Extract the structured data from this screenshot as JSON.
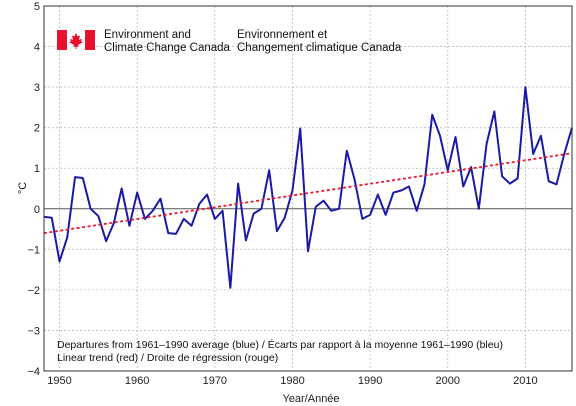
{
  "logo": {
    "en_line1": "Environment and",
    "en_line2": "Climate Change Canada",
    "fr_line1": "Environnement et",
    "fr_line2": "Changement climatique Canada",
    "flag_color": "#e8112d"
  },
  "chart_data": {
    "type": "line",
    "ylabel": "°C",
    "xlabel": "Year/Année",
    "xlim": [
      1948,
      2016
    ],
    "ylim": [
      -4,
      5
    ],
    "xticks": [
      1950,
      1960,
      1970,
      1980,
      1990,
      2000,
      2010
    ],
    "yticks": [
      -4,
      -3,
      -2,
      -1,
      0,
      1,
      2,
      3,
      4,
      5
    ],
    "grid": true,
    "annotations": [
      "Departures from 1961–1990 average (blue) / Écarts par rapport à la moyenne 1961–1990 (bleu)",
      "Linear trend (red) / Droite de régression (rouge)"
    ],
    "series": [
      {
        "color": "#1a1aa8",
        "x": [
          1948,
          1949,
          1950,
          1951,
          1952,
          1953,
          1954,
          1955,
          1956,
          1957,
          1958,
          1959,
          1960,
          1961,
          1962,
          1963,
          1964,
          1965,
          1966,
          1967,
          1968,
          1969,
          1970,
          1971,
          1972,
          1973,
          1974,
          1975,
          1976,
          1977,
          1978,
          1979,
          1980,
          1981,
          1982,
          1983,
          1984,
          1985,
          1986,
          1987,
          1988,
          1989,
          1990,
          1991,
          1992,
          1993,
          1994,
          1995,
          1996,
          1997,
          1998,
          1999,
          2000,
          2001,
          2002,
          2003,
          2004,
          2005,
          2006,
          2007,
          2008,
          2009,
          2010,
          2011,
          2012,
          2013,
          2014,
          2015,
          2016
        ],
        "values": [
          -0.2,
          -0.22,
          -1.3,
          -0.7,
          0.78,
          0.76,
          0.0,
          -0.18,
          -0.8,
          -0.35,
          0.5,
          -0.42,
          0.4,
          -0.25,
          -0.05,
          0.25,
          -0.6,
          -0.62,
          -0.25,
          -0.42,
          0.12,
          0.35,
          -0.25,
          -0.05,
          -1.95,
          0.62,
          -0.78,
          -0.12,
          0.0,
          0.95,
          -0.55,
          -0.22,
          0.45,
          1.98,
          -1.05,
          0.05,
          0.2,
          -0.05,
          0.0,
          1.43,
          0.72,
          -0.25,
          -0.15,
          0.35,
          -0.15,
          0.4,
          0.45,
          0.55,
          -0.05,
          0.6,
          2.32,
          1.8,
          0.95,
          1.77,
          0.55,
          1.03,
          0.0,
          1.6,
          2.4,
          0.8,
          0.62,
          0.75,
          3.0,
          1.35,
          1.8,
          0.68,
          0.6,
          1.35,
          2.0
        ]
      },
      {
        "color": "#e8192c",
        "x": [
          1948,
          2016
        ],
        "values": [
          -0.6,
          1.37
        ]
      }
    ]
  }
}
